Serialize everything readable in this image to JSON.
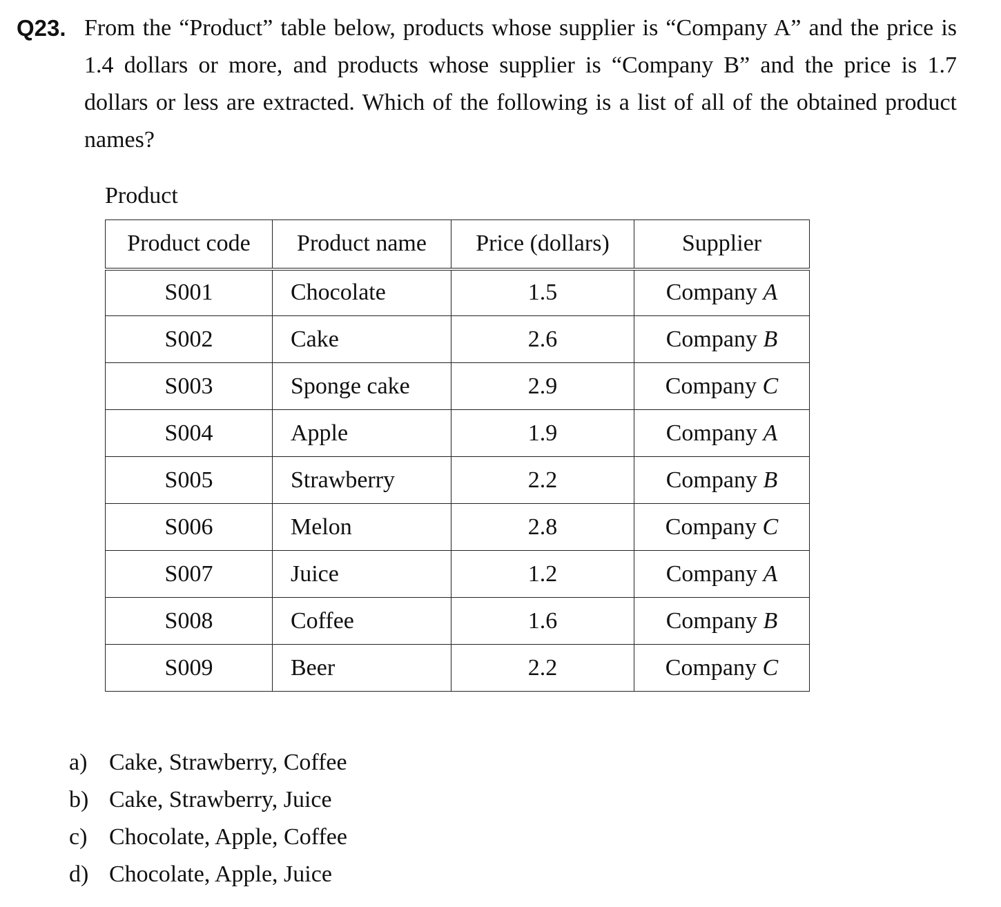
{
  "question": {
    "number": "Q23.",
    "text": "From the “Product” table below, products whose supplier is “Company A” and the price is 1.4 dollars or more, and products whose supplier is “Company B” and the price is 1.7 dollars or less are extracted.  Which of the following is a list of all of the obtained product names?"
  },
  "table": {
    "caption": "Product",
    "headers": [
      "Product code",
      "Product name",
      "Price (dollars)",
      "Supplier"
    ],
    "rows": [
      {
        "code": "S001",
        "name": "Chocolate",
        "price": "1.5",
        "supplier_prefix": "Company ",
        "supplier_letter": "A"
      },
      {
        "code": "S002",
        "name": "Cake",
        "price": "2.6",
        "supplier_prefix": "Company ",
        "supplier_letter": "B"
      },
      {
        "code": "S003",
        "name": "Sponge cake",
        "price": "2.9",
        "supplier_prefix": "Company ",
        "supplier_letter": "C"
      },
      {
        "code": "S004",
        "name": "Apple",
        "price": "1.9",
        "supplier_prefix": "Company ",
        "supplier_letter": "A"
      },
      {
        "code": "S005",
        "name": "Strawberry",
        "price": "2.2",
        "supplier_prefix": "Company ",
        "supplier_letter": "B"
      },
      {
        "code": "S006",
        "name": "Melon",
        "price": "2.8",
        "supplier_prefix": "Company ",
        "supplier_letter": "C"
      },
      {
        "code": "S007",
        "name": "Juice",
        "price": "1.2",
        "supplier_prefix": "Company ",
        "supplier_letter": "A"
      },
      {
        "code": "S008",
        "name": "Coffee",
        "price": "1.6",
        "supplier_prefix": "Company ",
        "supplier_letter": "B"
      },
      {
        "code": "S009",
        "name": "Beer",
        "price": "2.2",
        "supplier_prefix": "Company ",
        "supplier_letter": "C"
      }
    ]
  },
  "options": [
    {
      "letter": "a)",
      "text": "Cake, Strawberry, Coffee"
    },
    {
      "letter": "b)",
      "text": "Cake, Strawberry, Juice"
    },
    {
      "letter": "c)",
      "text": "Chocolate, Apple, Coffee"
    },
    {
      "letter": "d)",
      "text": "Chocolate, Apple, Juice"
    }
  ]
}
